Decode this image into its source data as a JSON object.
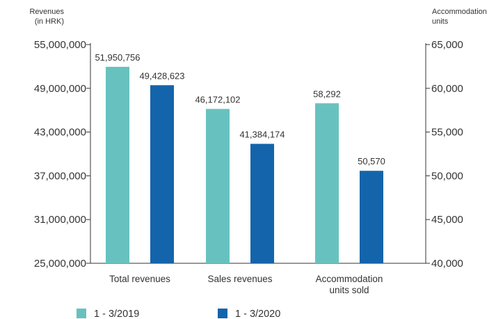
{
  "chart_data": {
    "type": "bar",
    "colors": {
      "series1": "#67c2bf",
      "series2": "#1464ab",
      "axis": "#333333"
    },
    "left_axis": {
      "label_lines": [
        "Revenues",
        "(in HRK)"
      ],
      "ylim": [
        25000000,
        55000000
      ],
      "ticks": [
        25000000,
        31000000,
        37000000,
        43000000,
        49000000,
        55000000
      ],
      "tick_labels": [
        "25,000,000",
        "31,000,000",
        "37,000,000",
        "43,000,000",
        "49,000,000",
        "55,000,000"
      ]
    },
    "right_axis": {
      "label_lines": [
        "Accommodation",
        "units"
      ],
      "ylim": [
        40000,
        65000
      ],
      "ticks": [
        40000,
        45000,
        50000,
        55000,
        60000,
        65000
      ],
      "tick_labels": [
        "40,000",
        "45,000",
        "50,000",
        "55,000",
        "60,000",
        "65,000"
      ]
    },
    "categories": [
      {
        "label_lines": [
          "Total revenues"
        ],
        "axis": "left"
      },
      {
        "label_lines": [
          "Sales revenues"
        ],
        "axis": "left"
      },
      {
        "label_lines": [
          "Accommodation",
          "units sold"
        ],
        "axis": "right"
      }
    ],
    "series": [
      {
        "name": "1 - 3/2019",
        "values": [
          51950756,
          46172102,
          58292
        ],
        "value_labels": [
          "51,950,756",
          "46,172,102",
          "58,292"
        ]
      },
      {
        "name": "1 - 3/2020",
        "values": [
          49428623,
          41384174,
          50570
        ],
        "value_labels": [
          "49,428,623",
          "41,384,174",
          "50,570"
        ]
      }
    ],
    "legend": {
      "placement": "bottom-left"
    },
    "grid": false
  }
}
